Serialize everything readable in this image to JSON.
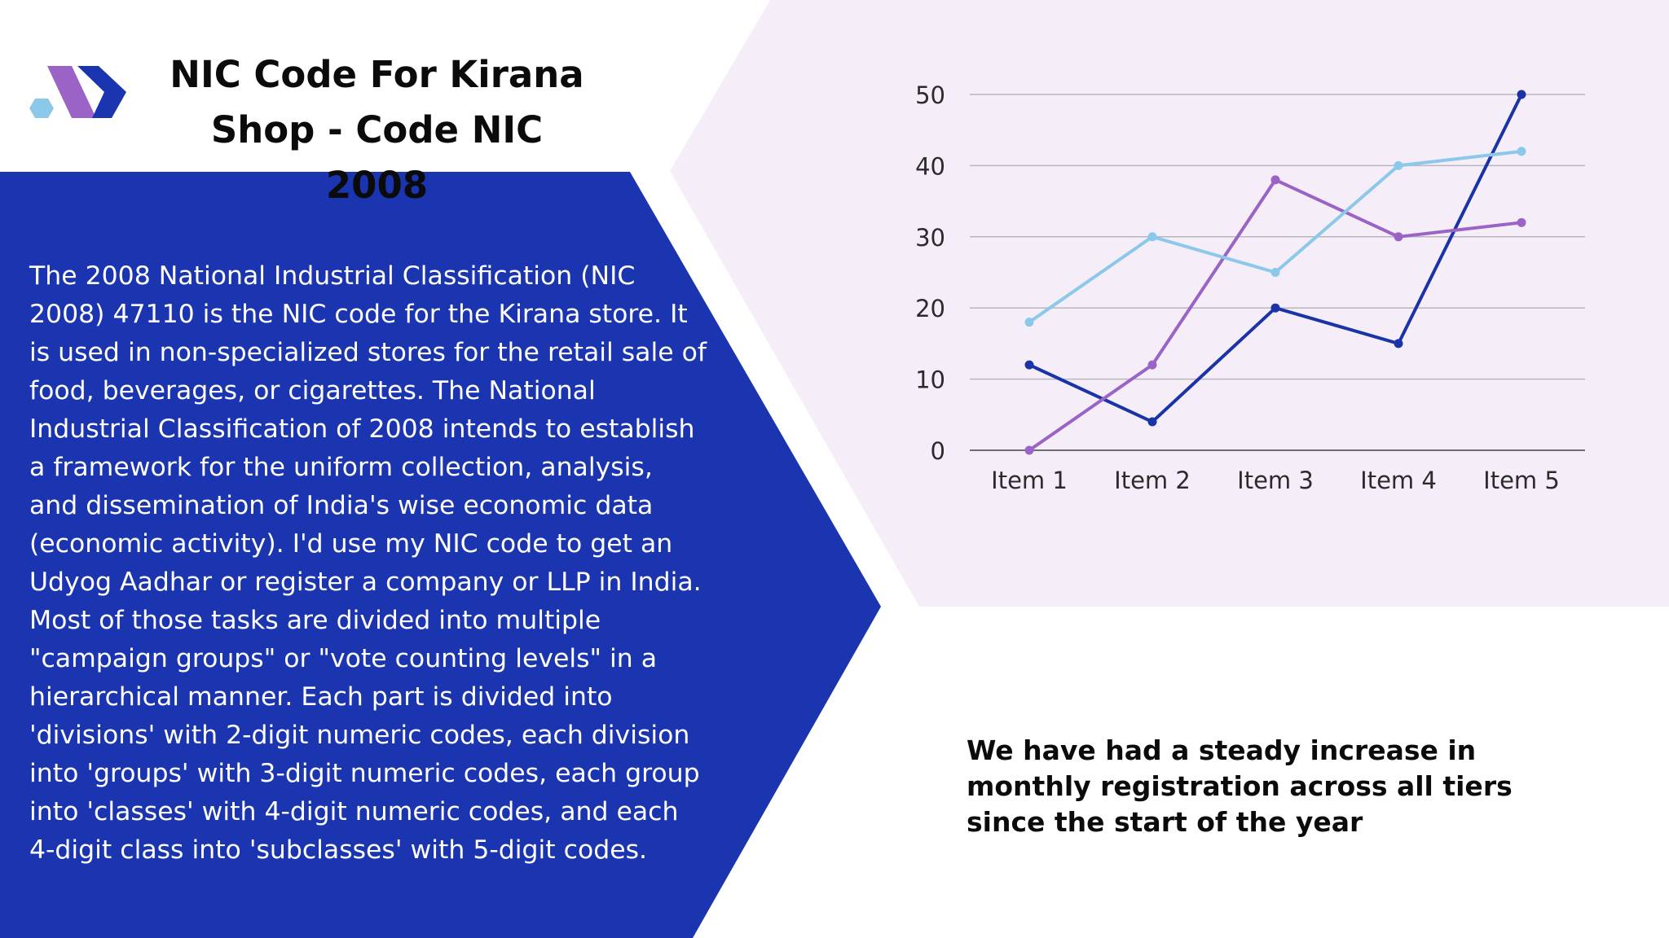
{
  "header": {
    "title": "NIC Code For Kirana Shop - Code NIC 2008"
  },
  "body": {
    "paragraph": "The 2008 National Industrial Classification (NIC 2008) 47110 is the NIC code for the Kirana store. It is used in non-specialized stores for the retail sale of food, beverages, or cigarettes. The National Industrial Classification of 2008 intends to establish a framework for the uniform collection, analysis, and dissemination of India's wise economic data (economic activity). I'd use my NIC code to get an Udyog Aadhar or register a company or LLP in India. Most of those tasks are divided into multiple \"campaign groups\" or \"vote counting levels\" in a hierarchical manner. Each part is divided into 'divisions' with 2-digit numeric codes, each division into 'groups' with 3-digit numeric codes, each group into 'classes' with 4-digit numeric codes, and each 4-digit class into 'subclasses' with 5-digit codes."
  },
  "caption": "We have had a steady increase in monthly registration across all tiers since the start of the year",
  "colors": {
    "panel_blue": "#1b35b0",
    "chart_bg": "#f5eef8",
    "series_dark_blue": "#1a34a8",
    "series_purple": "#9b63c6",
    "series_light_blue": "#8bc8ea",
    "logo_purple": "#9b63c6",
    "logo_blue": "#1b35b0",
    "logo_light_blue": "#8bc8ea"
  },
  "logo": {
    "icon": "hexagon-logo-icon"
  },
  "chart_data": {
    "type": "line",
    "categories": [
      "Item 1",
      "Item 2",
      "Item 3",
      "Item 4",
      "Item 5"
    ],
    "series": [
      {
        "values": [
          12,
          4,
          20,
          15,
          50
        ],
        "color": "#1a34a8"
      },
      {
        "values": [
          0,
          12,
          38,
          30,
          32
        ],
        "color": "#9b63c6"
      },
      {
        "values": [
          18,
          30,
          25,
          40,
          42
        ],
        "color": "#8bc8ea"
      }
    ],
    "yticks": [
      0,
      10,
      20,
      30,
      40,
      50
    ],
    "ylim": [
      0,
      50
    ],
    "grid": true,
    "title": "",
    "xlabel": "",
    "ylabel": ""
  }
}
